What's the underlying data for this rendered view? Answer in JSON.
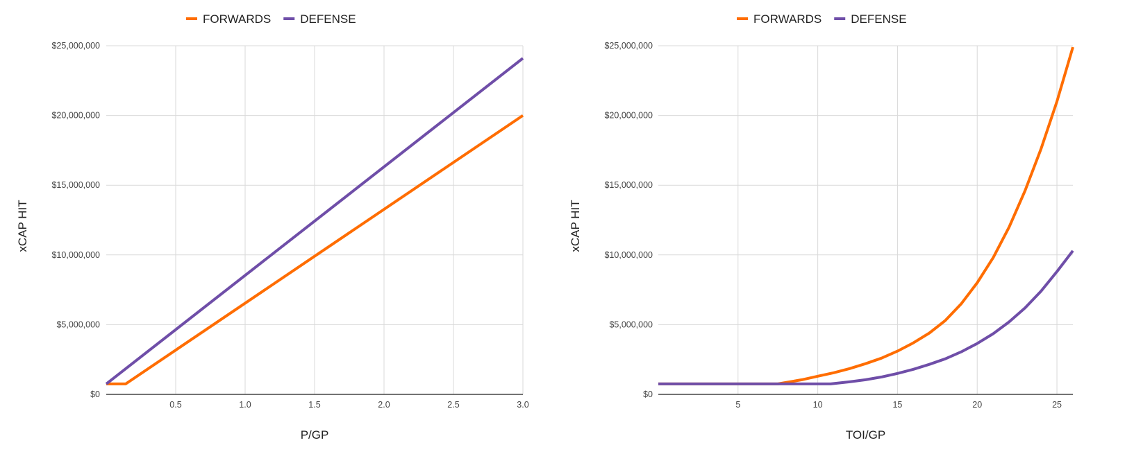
{
  "chart_data": [
    {
      "type": "line",
      "title": "",
      "xlabel": "P/GP",
      "ylabel": "xCAP HIT",
      "xlim": [
        0,
        3.0
      ],
      "ylim": [
        0,
        25000000
      ],
      "x_ticks": [
        0.5,
        1.0,
        1.5,
        2.0,
        2.5,
        3.0
      ],
      "x_tick_labels": [
        "0.5",
        "1.0",
        "1.5",
        "2.0",
        "2.5",
        "3.0"
      ],
      "y_ticks": [
        0,
        5000000,
        10000000,
        15000000,
        20000000,
        25000000
      ],
      "y_tick_labels": [
        "$0",
        "$5,000,000",
        "$10,000,000",
        "$15,000,000",
        "$20,000,000",
        "$25,000,000"
      ],
      "grid": true,
      "legend_position": "top",
      "series": [
        {
          "name": "FORWARDS",
          "color": "#ff6d01",
          "x": [
            0,
            0.14,
            3.0
          ],
          "y": [
            750000,
            750000,
            20000000
          ]
        },
        {
          "name": "DEFENSE",
          "color": "#6f4ea8",
          "x": [
            0,
            3.0
          ],
          "y": [
            750000,
            24100000
          ]
        }
      ]
    },
    {
      "type": "line",
      "title": "",
      "xlabel": "TOI/GP",
      "ylabel": "xCAP HIT",
      "xlim": [
        0,
        26
      ],
      "ylim": [
        0,
        25000000
      ],
      "x_ticks": [
        5,
        10,
        15,
        20,
        25
      ],
      "x_tick_labels": [
        "5",
        "10",
        "15",
        "20",
        "25"
      ],
      "y_ticks": [
        0,
        5000000,
        10000000,
        15000000,
        20000000,
        25000000
      ],
      "y_tick_labels": [
        "$0",
        "$5,000,000",
        "$10,000,000",
        "$15,000,000",
        "$20,000,000",
        "$25,000,000"
      ],
      "grid": true,
      "legend_position": "top",
      "series": [
        {
          "name": "FORWARDS",
          "color": "#ff6d01",
          "x": [
            0,
            7.5,
            8,
            9,
            10,
            11,
            12,
            13,
            14,
            15,
            16,
            17,
            18,
            19,
            20,
            21,
            22,
            23,
            24,
            25,
            26
          ],
          "y": [
            750000,
            750000,
            850000,
            1050000,
            1300000,
            1550000,
            1850000,
            2200000,
            2600000,
            3100000,
            3700000,
            4400000,
            5300000,
            6500000,
            8000000,
            9800000,
            12000000,
            14600000,
            17600000,
            21000000,
            24900000
          ]
        },
        {
          "name": "DEFENSE",
          "color": "#6f4ea8",
          "x": [
            0,
            10.8,
            12,
            13,
            14,
            15,
            16,
            17,
            18,
            19,
            20,
            21,
            22,
            23,
            24,
            25,
            26
          ],
          "y": [
            750000,
            750000,
            900000,
            1050000,
            1250000,
            1500000,
            1800000,
            2150000,
            2550000,
            3050000,
            3650000,
            4350000,
            5200000,
            6200000,
            7400000,
            8800000,
            10300000
          ]
        }
      ]
    }
  ]
}
